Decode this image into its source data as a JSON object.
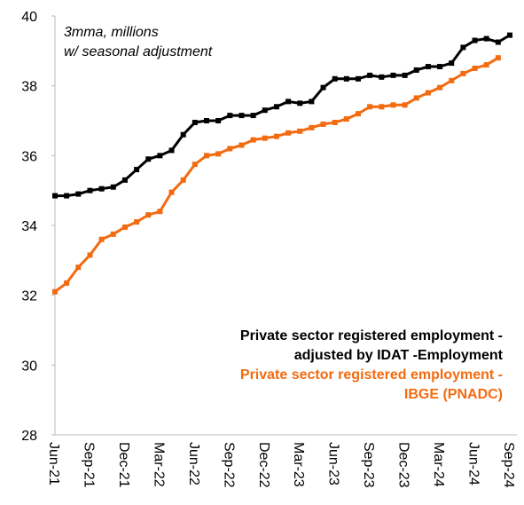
{
  "chart_data": {
    "type": "line",
    "annotation": "3mma, millions\nw/ seasonal adjustment",
    "categories": [
      "Jun-21",
      null,
      null,
      "Sep-21",
      null,
      null,
      "Dec-21",
      null,
      null,
      "Mar-22",
      null,
      null,
      "Jun-22",
      null,
      null,
      "Sep-22",
      null,
      null,
      "Dec-22",
      null,
      null,
      "Mar-23",
      null,
      null,
      "Jun-23",
      null,
      null,
      "Sep-23",
      null,
      null,
      "Dec-23",
      null,
      null,
      "Mar-24",
      null,
      null,
      "Jun-24",
      null,
      null,
      "Sep-24"
    ],
    "series": [
      {
        "name": "Private sector registered employment -\nadjusted by IDAT -Employment",
        "color": "#000000",
        "values": [
          34.85,
          34.85,
          34.9,
          35.0,
          35.05,
          35.1,
          35.3,
          35.6,
          35.9,
          36.0,
          36.15,
          36.6,
          36.95,
          37.0,
          37.0,
          37.15,
          37.15,
          37.15,
          37.3,
          37.4,
          37.55,
          37.5,
          37.55,
          37.95,
          38.2,
          38.2,
          38.2,
          38.3,
          38.25,
          38.3,
          38.3,
          38.45,
          38.55,
          38.55,
          38.65,
          39.1,
          39.3,
          39.35,
          39.25,
          39.45
        ]
      },
      {
        "name": "Private sector registered employment -\nIBGE (PNADC)",
        "color": "#f26b10",
        "values": [
          32.1,
          32.35,
          32.8,
          33.15,
          33.6,
          33.75,
          33.95,
          34.1,
          34.3,
          34.4,
          34.95,
          35.3,
          35.75,
          36.0,
          36.05,
          36.2,
          36.3,
          36.45,
          36.5,
          36.55,
          36.65,
          36.7,
          36.8,
          36.9,
          36.95,
          37.05,
          37.2,
          37.4,
          37.4,
          37.45,
          37.45,
          37.65,
          37.8,
          37.95,
          38.15,
          38.35,
          38.5,
          38.6,
          38.8,
          null
        ]
      }
    ],
    "ylim": [
      28,
      40
    ],
    "yticks": [
      28,
      30,
      32,
      34,
      36,
      38,
      40
    ],
    "grid": false
  }
}
